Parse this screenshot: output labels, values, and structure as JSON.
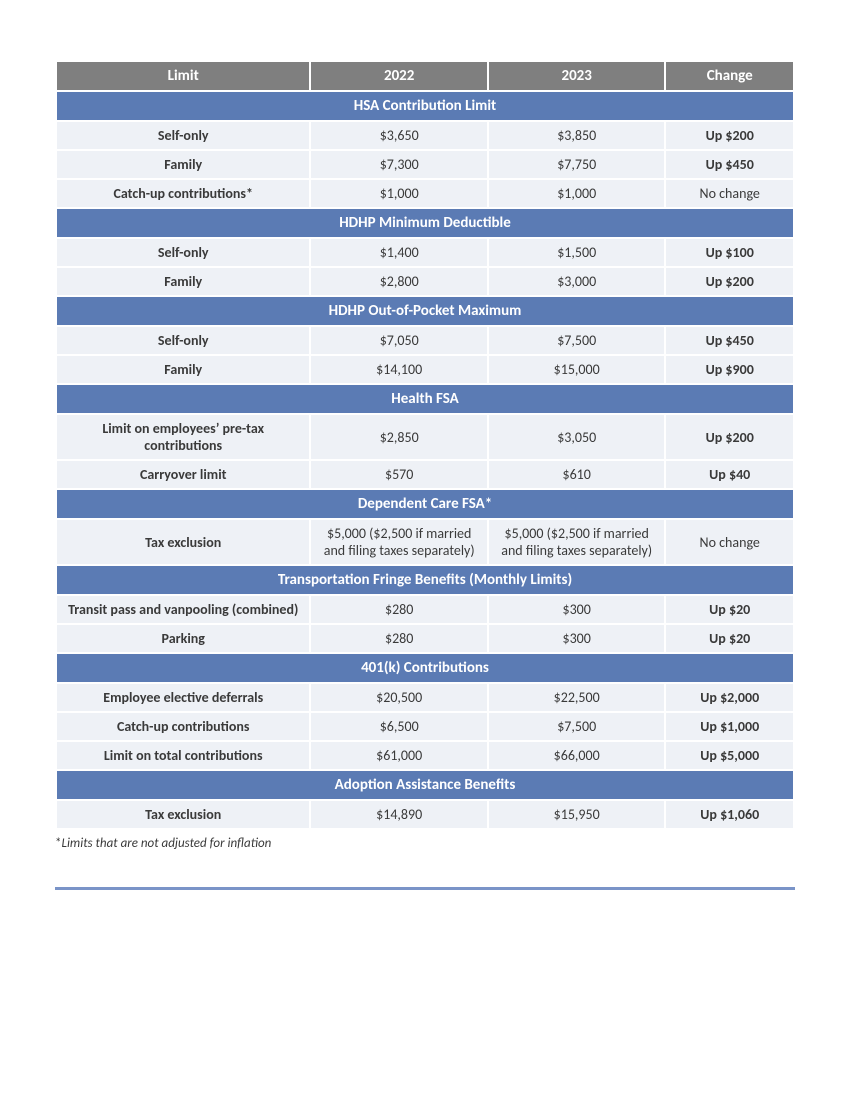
{
  "columns": {
    "limit": "Limit",
    "y2022": "2022",
    "y2023": "2023",
    "change": "Change"
  },
  "sections": [
    {
      "title": "HSA Contribution Limit",
      "rows": [
        {
          "label": "Self-only",
          "y2022": "$3,650",
          "y2023": "$3,850",
          "change": "Up $200",
          "nochange": false
        },
        {
          "label": "Family",
          "y2022": "$7,300",
          "y2023": "$7,750",
          "change": "Up $450",
          "nochange": false
        },
        {
          "label": "Catch-up contributions*",
          "y2022": "$1,000",
          "y2023": "$1,000",
          "change": "No change",
          "nochange": true
        }
      ]
    },
    {
      "title": "HDHP Minimum Deductible",
      "rows": [
        {
          "label": "Self-only",
          "y2022": "$1,400",
          "y2023": "$1,500",
          "change": "Up $100",
          "nochange": false
        },
        {
          "label": "Family",
          "y2022": "$2,800",
          "y2023": "$3,000",
          "change": "Up $200",
          "nochange": false
        }
      ]
    },
    {
      "title": "HDHP Out-of-Pocket Maximum",
      "rows": [
        {
          "label": "Self-only",
          "y2022": "$7,050",
          "y2023": "$7,500",
          "change": "Up $450",
          "nochange": false
        },
        {
          "label": "Family",
          "y2022": "$14,100",
          "y2023": "$15,000",
          "change": "Up $900",
          "nochange": false
        }
      ]
    },
    {
      "title": "Health FSA",
      "rows": [
        {
          "label": "Limit on employees’ pre-tax contributions",
          "y2022": "$2,850",
          "y2023": "$3,050",
          "change": "Up $200",
          "nochange": false
        },
        {
          "label": "Carryover limit",
          "y2022": "$570",
          "y2023": "$610",
          "change": "Up $40",
          "nochange": false
        }
      ]
    },
    {
      "title": "Dependent Care FSA*",
      "rows": [
        {
          "label": "Tax exclusion",
          "y2022": "$5,000 ($2,500 if married and filing taxes separately)",
          "y2023": "$5,000 ($2,500 if married and filing taxes separately)",
          "change": "No change",
          "nochange": true
        }
      ]
    },
    {
      "title": "Transportation Fringe Benefits (Monthly Limits)",
      "rows": [
        {
          "label": "Transit pass and vanpooling (combined)",
          "y2022": "$280",
          "y2023": "$300",
          "change": "Up $20",
          "nochange": false
        },
        {
          "label": "Parking",
          "y2022": "$280",
          "y2023": "$300",
          "change": "Up $20",
          "nochange": false
        }
      ]
    },
    {
      "title": "401(k) Contributions",
      "rows": [
        {
          "label": "Employee elective deferrals",
          "y2022": "$20,500",
          "y2023": "$22,500",
          "change": "Up $2,000",
          "nochange": false
        },
        {
          "label": "Catch-up contributions",
          "y2022": "$6,500",
          "y2023": "$7,500",
          "change": "Up $1,000",
          "nochange": false
        },
        {
          "label": "Limit on total contributions",
          "y2022": "$61,000",
          "y2023": "$66,000",
          "change": "Up $5,000",
          "nochange": false
        }
      ]
    },
    {
      "title": "Adoption Assistance Benefits",
      "rows": [
        {
          "label": "Tax exclusion",
          "y2022": "$14,890",
          "y2023": "$15,950",
          "change": "Up $1,060",
          "nochange": false
        }
      ]
    }
  ],
  "footnote": {
    "star": "*",
    "text": "Limits that are not adjusted for inflation"
  },
  "colors": {
    "header_bg": "#7f7f7f",
    "section_bg": "#5b7bb4",
    "row_bg": "#eef1f6",
    "rule": "#7a94c8",
    "text": "#3a3a3a"
  }
}
